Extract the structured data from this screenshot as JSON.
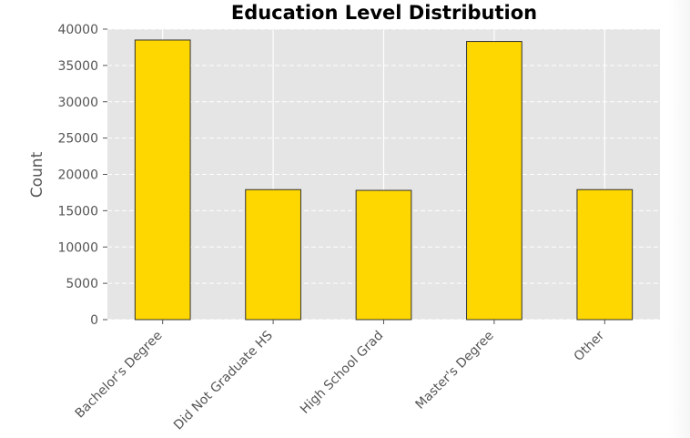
{
  "chart_data": {
    "type": "bar",
    "title": "Education Level Distribution",
    "xlabel": "",
    "ylabel": "Count",
    "categories": [
      "Bachelor's Degree",
      "Did Not Graduate HS",
      "High School Grad",
      "Master's Degree",
      "Other"
    ],
    "values": [
      38500,
      17900,
      17800,
      38300,
      17900
    ],
    "ylim": [
      0,
      40000
    ],
    "yticks": [
      0,
      5000,
      10000,
      15000,
      20000,
      25000,
      30000,
      35000,
      40000
    ],
    "grid": true,
    "style": "ggplot",
    "colors": {
      "bar_fill": "#FFD700",
      "bar_edge": "#333333",
      "plot_background": "#E5E5E5",
      "grid": "#FFFFFF",
      "tick_text": "#555555",
      "title_text": "#000000"
    }
  }
}
